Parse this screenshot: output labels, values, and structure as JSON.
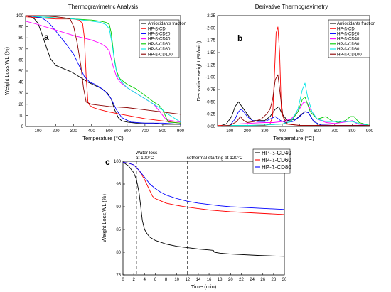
{
  "chart_data": [
    {
      "panel_label": "a",
      "type": "line",
      "title": "Thermogravimetric Analysis",
      "xlabel": "Temperature (°C)",
      "ylabel": "Weight Loss,WL (%)",
      "xlim": [
        30,
        900
      ],
      "ylim": [
        0,
        100
      ],
      "xticks": [
        100,
        200,
        300,
        400,
        500,
        600,
        700,
        800,
        900
      ],
      "yticks": [
        0,
        10,
        20,
        30,
        40,
        50,
        60,
        70,
        80,
        90,
        100
      ],
      "legend_position": "top-right",
      "grid": false,
      "series": [
        {
          "name": "Antioxidants fraction",
          "color": "#000000",
          "x": [
            30,
            60,
            80,
            100,
            120,
            150,
            170,
            200,
            230,
            260,
            290,
            320,
            350,
            380,
            420,
            460,
            490,
            510,
            530,
            550,
            570,
            600,
            650,
            700,
            750,
            800,
            850,
            900
          ],
          "y": [
            100,
            99,
            97,
            93,
            84,
            70,
            61,
            55,
            53,
            51,
            49,
            46,
            43,
            40,
            37,
            34,
            30,
            25,
            15,
            8,
            5,
            4,
            3,
            3,
            3,
            2,
            2,
            2
          ]
        },
        {
          "name": "HP-ß-CD",
          "color": "#ff0000",
          "x": [
            30,
            100,
            200,
            300,
            330,
            350,
            360,
            370,
            380,
            390,
            410,
            450,
            500,
            600,
            700,
            800,
            900
          ],
          "y": [
            99,
            98,
            97,
            97,
            96,
            93,
            80,
            45,
            22,
            19,
            17,
            15,
            13,
            10,
            7,
            5,
            3
          ]
        },
        {
          "name": "HP-ß-CD20",
          "color": "#0000ff",
          "x": [
            30,
            80,
            120,
            150,
            180,
            220,
            260,
            300,
            330,
            360,
            390,
            420,
            450,
            480,
            510,
            540,
            570,
            620,
            700,
            800,
            900
          ],
          "y": [
            100,
            99,
            98,
            95,
            90,
            82,
            74,
            65,
            55,
            45,
            40,
            38,
            35,
            31,
            25,
            15,
            8,
            4,
            3,
            3,
            2
          ]
        },
        {
          "name": "HP-ß-CD40",
          "color": "#ff00ff",
          "x": [
            30,
            100,
            200,
            300,
            350,
            400,
            450,
            480,
            500,
            520,
            540,
            560,
            600,
            650,
            700,
            750,
            790,
            820,
            900
          ],
          "y": [
            95,
            92,
            87,
            82,
            80,
            78,
            75,
            72,
            68,
            55,
            45,
            40,
            35,
            30,
            25,
            20,
            12,
            6,
            4
          ]
        },
        {
          "name": "HP-ß-CD60",
          "color": "#00cc00",
          "x": [
            30,
            100,
            200,
            300,
            400,
            450,
            480,
            500,
            510,
            525,
            540,
            560,
            600,
            650,
            700,
            750,
            780,
            800,
            830,
            900
          ],
          "y": [
            100,
            99,
            98,
            97,
            96,
            95,
            94,
            92,
            85,
            65,
            50,
            43,
            38,
            34,
            28,
            22,
            19,
            15,
            4,
            3
          ]
        },
        {
          "name": "HP-ß-CD80",
          "color": "#00e5e5",
          "x": [
            30,
            100,
            200,
            300,
            400,
            450,
            480,
            500,
            515,
            530,
            545,
            570,
            600,
            650,
            700,
            750,
            790,
            820,
            900
          ],
          "y": [
            100,
            99,
            98,
            97,
            95,
            94,
            92,
            88,
            75,
            58,
            46,
            40,
            35,
            30,
            25,
            20,
            16,
            12,
            4
          ]
        },
        {
          "name": "HP-ß-CD100",
          "color": "#8b0000",
          "x": [
            30,
            100,
            200,
            250,
            280,
            300,
            320,
            340,
            355,
            370,
            400,
            500,
            600,
            700,
            800,
            900
          ],
          "y": [
            100,
            100,
            99,
            98,
            97,
            90,
            75,
            55,
            35,
            22,
            20,
            18,
            17,
            15,
            13,
            11
          ]
        }
      ]
    },
    {
      "panel_label": "b",
      "type": "line",
      "title": "Derivative Thermogravimetry",
      "xlabel": "Temperature (°C)",
      "ylabel": "Derivative weight (%/min)",
      "xlim": [
        30,
        900
      ],
      "ylim": [
        0,
        -2.25
      ],
      "xticks": [
        100,
        200,
        300,
        400,
        500,
        600,
        700,
        800,
        900
      ],
      "yticks": [
        "-2.25",
        "-2.00",
        "-1.75",
        "-1.50",
        "-1.25",
        "-1.00",
        "-0.75",
        "-0.50",
        "-0.25",
        "0.00"
      ],
      "legend_position": "top-right",
      "grid": false,
      "series": [
        {
          "name": "Antioxidants fraction",
          "color": "#000000",
          "x": [
            30,
            80,
            110,
            130,
            150,
            170,
            190,
            210,
            230,
            260,
            300,
            330,
            360,
            380,
            400,
            430,
            480,
            510,
            530,
            550,
            580,
            620,
            700,
            800,
            900
          ],
          "y": [
            0,
            -0.05,
            -0.2,
            -0.4,
            -0.5,
            -0.4,
            -0.3,
            -0.2,
            -0.12,
            -0.12,
            -0.12,
            -0.2,
            -0.35,
            -0.4,
            -0.25,
            -0.12,
            -0.15,
            -0.25,
            -0.3,
            -0.28,
            -0.1,
            -0.03,
            -0.02,
            -0.02,
            -0.02
          ]
        },
        {
          "name": "HP-ß-CD",
          "color": "#ff0000",
          "x": [
            30,
            100,
            200,
            300,
            330,
            345,
            355,
            365,
            375,
            385,
            395,
            420,
            500,
            600,
            700,
            800,
            900
          ],
          "y": [
            -0.02,
            -0.02,
            -0.02,
            -0.02,
            -0.05,
            -0.2,
            -1.0,
            -1.9,
            -2.02,
            -1.5,
            -0.3,
            -0.05,
            -0.02,
            -0.02,
            -0.02,
            -0.02,
            -0.02
          ]
        },
        {
          "name": "HP-ß-CD20",
          "color": "#0000ff",
          "x": [
            30,
            100,
            130,
            150,
            165,
            180,
            200,
            230,
            260,
            300,
            330,
            360,
            390,
            420,
            460,
            500,
            530,
            550,
            580,
            620,
            700,
            800,
            900
          ],
          "y": [
            0,
            -0.02,
            -0.15,
            -0.3,
            -0.35,
            -0.3,
            -0.2,
            -0.12,
            -0.1,
            -0.1,
            -0.15,
            -0.2,
            -0.12,
            -0.08,
            -0.1,
            -0.2,
            -0.3,
            -0.28,
            -0.1,
            -0.03,
            -0.02,
            -0.02,
            -0.02
          ]
        },
        {
          "name": "HP-ß-CD40",
          "color": "#ff00ff",
          "x": [
            30,
            100,
            150,
            200,
            250,
            300,
            350,
            400,
            450,
            490,
            520,
            540,
            560,
            600,
            650,
            700,
            780,
            800,
            830,
            900
          ],
          "y": [
            -0.05,
            -0.05,
            -0.05,
            -0.06,
            -0.07,
            -0.08,
            -0.08,
            -0.1,
            -0.15,
            -0.3,
            -0.48,
            -0.5,
            -0.35,
            -0.15,
            -0.08,
            -0.06,
            -0.1,
            -0.12,
            -0.05,
            -0.02
          ]
        },
        {
          "name": "HP-ß-CD60",
          "color": "#00cc00",
          "x": [
            30,
            100,
            200,
            300,
            400,
            450,
            490,
            515,
            530,
            540,
            560,
            600,
            650,
            680,
            720,
            760,
            790,
            810,
            840,
            900
          ],
          "y": [
            0,
            -0.02,
            -0.02,
            -0.03,
            -0.05,
            -0.1,
            -0.3,
            -0.55,
            -0.6,
            -0.5,
            -0.3,
            -0.15,
            -0.2,
            -0.12,
            -0.08,
            -0.12,
            -0.2,
            -0.2,
            -0.08,
            -0.02
          ]
        },
        {
          "name": "HP-ß-CD80",
          "color": "#00e5e5",
          "x": [
            30,
            100,
            200,
            300,
            400,
            450,
            490,
            515,
            530,
            545,
            570,
            600,
            650,
            700,
            750,
            800,
            850,
            900
          ],
          "y": [
            0,
            -0.02,
            -0.02,
            -0.03,
            -0.05,
            -0.1,
            -0.35,
            -0.75,
            -0.88,
            -0.6,
            -0.3,
            -0.15,
            -0.1,
            -0.1,
            -0.1,
            -0.1,
            -0.05,
            -0.02
          ]
        },
        {
          "name": "HP-ß-CD100",
          "color": "#8b0000",
          "x": [
            30,
            100,
            140,
            160,
            180,
            200,
            240,
            280,
            310,
            330,
            345,
            360,
            375,
            390,
            405,
            430,
            500,
            600,
            700,
            800,
            900
          ],
          "y": [
            0,
            -0.02,
            -0.1,
            -0.2,
            -0.12,
            -0.08,
            -0.1,
            -0.15,
            -0.25,
            -0.35,
            -0.55,
            -0.95,
            -1.05,
            -0.6,
            -0.2,
            -0.05,
            -0.02,
            -0.02,
            -0.02,
            -0.02,
            -0.02
          ]
        }
      ]
    },
    {
      "panel_label": "c",
      "type": "line",
      "title": "",
      "xlabel": "Time (min)",
      "ylabel": "Weight Loss,WL (%)",
      "xlim": [
        0,
        30
      ],
      "ylim": [
        75,
        100
      ],
      "xticks": [
        0,
        2,
        4,
        6,
        8,
        10,
        12,
        14,
        16,
        18,
        20,
        22,
        24,
        26,
        28,
        30
      ],
      "yticks": [
        75,
        80,
        85,
        90,
        95,
        100
      ],
      "legend_position": "top-right",
      "grid": false,
      "annotations": [
        {
          "text": "Water loss",
          "x": 2.5
        },
        {
          "text": "at 100°C",
          "x": 2.5
        },
        {
          "text": "Isothermal starting at 120°C",
          "x": 12
        }
      ],
      "vlines": [
        2.5,
        12
      ],
      "series": [
        {
          "name": "HP-ß-CD40",
          "color": "#000000",
          "x": [
            0,
            1,
            2,
            2.5,
            3,
            3.3,
            3.6,
            4,
            4.5,
            5,
            6,
            7,
            8,
            10,
            12,
            14,
            16,
            16.8,
            17,
            18,
            20,
            25,
            30
          ],
          "y": [
            99.8,
            99,
            97.5,
            96,
            93,
            90,
            87,
            85,
            84,
            83.3,
            82.6,
            82.2,
            81.8,
            81.3,
            81,
            80.7,
            80.5,
            80.4,
            80,
            79.8,
            79.6,
            79.3,
            79.1
          ]
        },
        {
          "name": "HP-ß-CD60",
          "color": "#ff0000",
          "x": [
            0,
            1,
            2,
            3,
            4,
            5,
            5.5,
            6,
            7,
            8,
            10,
            12,
            14,
            16,
            18,
            20,
            25,
            30
          ],
          "y": [
            99.8,
            99.6,
            99.2,
            98,
            96,
            93.5,
            92.3,
            91.8,
            91.3,
            90.8,
            90.3,
            89.9,
            89.6,
            89.3,
            89.1,
            88.9,
            88.6,
            88.3
          ]
        },
        {
          "name": "HP-ß-CD80",
          "color": "#0000ff",
          "x": [
            0,
            1,
            2,
            3,
            4,
            5,
            6,
            7,
            8,
            10,
            12,
            14,
            16,
            18,
            20,
            25,
            30
          ],
          "y": [
            99.8,
            99.6,
            99.2,
            98,
            96.5,
            95,
            94,
            93.2,
            92.6,
            91.8,
            91.2,
            90.8,
            90.5,
            90.2,
            90,
            89.7,
            89.4
          ]
        }
      ]
    }
  ]
}
